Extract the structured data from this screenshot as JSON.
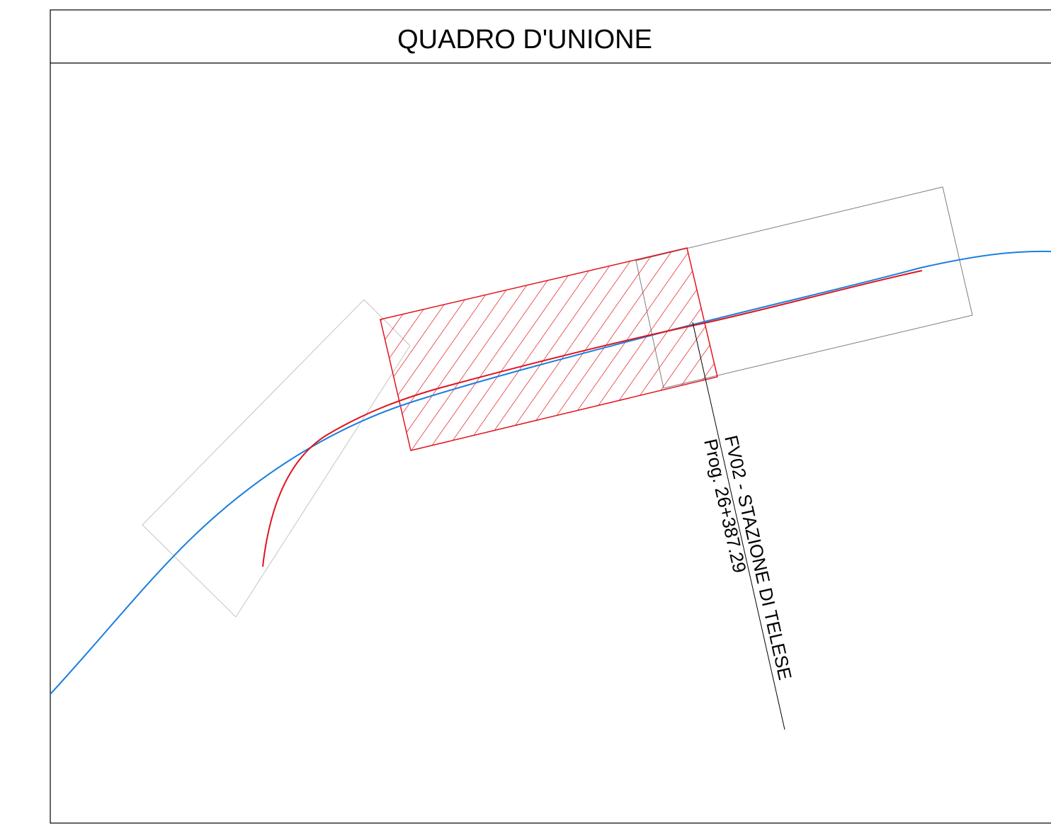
{
  "title": "QUADRO D'UNIONE",
  "station": {
    "name": "FV02 - STAZIONE DI TELESE",
    "progressive": "Prog. 26+387.29"
  },
  "colors": {
    "border": "#000000",
    "main_alignment": "#1a7fe0",
    "secondary_alignment": "#e0141e",
    "highlight_hatch": "#e0141e",
    "sheet_outline_left": "#bdbdbd",
    "sheet_outline_right": "#7a7a7a",
    "callout_line": "#000000"
  }
}
